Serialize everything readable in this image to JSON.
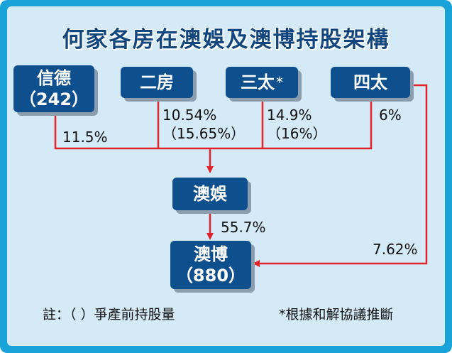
{
  "title": "何家各房在澳娛及澳博持股架構",
  "nodes": {
    "xindi": {
      "line1": "信德",
      "line2": "（242）"
    },
    "erfang": {
      "label": "二房"
    },
    "santai": {
      "label": "三太",
      "mark": "*"
    },
    "sitai": {
      "label": "四太"
    },
    "aoyu": {
      "label": "澳娛"
    },
    "aobo": {
      "line1": "澳博",
      "line2": "（880）"
    }
  },
  "stakes": {
    "xindi_aoyu": "11.5%",
    "erfang_aoyu": "10.54%",
    "erfang_aoyu_pre": "（15.65%）",
    "santai_aoyu": "14.9%",
    "santai_aoyu_pre": "（16%）",
    "sitai_aoyu": "6%",
    "aoyu_aobo": "55.7%",
    "sitai_aobo": "7.62%"
  },
  "notes": {
    "left": "註：（  ）爭產前持股量",
    "right": "*根據和解協議推斷"
  },
  "colors": {
    "frame": "#1aa3d9",
    "panel": "#d4eaf7",
    "box": "#0e4f8d",
    "line": "#e0242a",
    "title": "#12467e"
  }
}
